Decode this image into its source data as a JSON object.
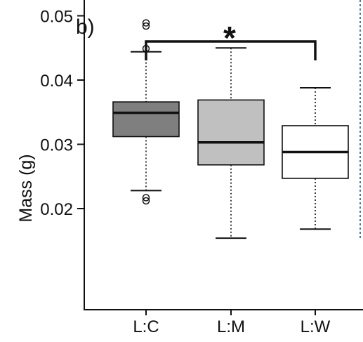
{
  "panel_label": "b)",
  "significance_label": "*",
  "colors": {
    "axis": "#111111",
    "dashed_divider": "#4a76b5"
  },
  "chart_data": {
    "type": "box",
    "title": "",
    "xlabel": "",
    "ylabel": "Mass (g)",
    "ylim": [
      0.0115,
      0.0535
    ],
    "yticks": [
      0.02,
      0.03,
      0.04,
      0.05
    ],
    "ytick_labels": [
      "0.02",
      "0.03",
      "0.04",
      "0.05"
    ],
    "categories": [
      "L:C",
      "L:M",
      "L:W"
    ],
    "fill_colors": [
      "#7f7f7f",
      "#c0c0c0",
      "#ffffff"
    ],
    "boxes": [
      {
        "label": "L:C",
        "whisker_low": 0.0228,
        "q1": 0.0312,
        "median": 0.0349,
        "q3": 0.0366,
        "whisker_high": 0.0444,
        "outliers": [
          0.0212,
          0.0217,
          0.0449,
          0.0484,
          0.0489
        ]
      },
      {
        "label": "L:M",
        "whisker_low": 0.0154,
        "q1": 0.0268,
        "median": 0.0303,
        "q3": 0.0369,
        "whisker_high": 0.045,
        "outliers": []
      },
      {
        "label": "L:W",
        "whisker_low": 0.0168,
        "q1": 0.0247,
        "median": 0.0288,
        "q3": 0.0329,
        "whisker_high": 0.0388,
        "outliers": []
      }
    ],
    "comparison": {
      "from": "L:C",
      "to": "L:W",
      "label": "*"
    },
    "grid": false,
    "legend": "none"
  }
}
